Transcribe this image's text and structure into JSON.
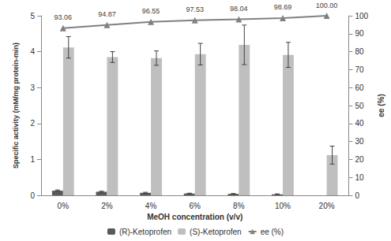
{
  "chart_data": {
    "type": "bar",
    "x_label": "MeOH concentration (v/v)",
    "y_label": "Specific activity (mM/mg protein-min)",
    "y2_label": "ee (%)",
    "categories": [
      "0%",
      "2%",
      "4%",
      "6%",
      "8%",
      "10%",
      "20%"
    ],
    "series": [
      {
        "name": "(R)-Ketoprofen",
        "type": "bar",
        "color": "#595959",
        "axis": "y",
        "values": [
          0.13,
          0.1,
          0.07,
          0.05,
          0.04,
          0.03,
          0
        ],
        "errors": [
          0.02,
          0.015,
          0.015,
          0.01,
          0.01,
          0.01,
          0
        ]
      },
      {
        "name": "(S)-Ketoprofen",
        "type": "bar",
        "color": "#bfbfbf",
        "axis": "y",
        "values": [
          4.12,
          3.85,
          3.82,
          3.93,
          4.19,
          3.91,
          1.12
        ],
        "errors": [
          0.3,
          0.15,
          0.2,
          0.3,
          0.55,
          0.35,
          0.25
        ]
      },
      {
        "name": "ee (%)",
        "type": "line",
        "color": "#808080",
        "axis": "y2",
        "marker": "triangle",
        "data_labels": true,
        "values": [
          93.06,
          94.87,
          96.55,
          97.53,
          98.04,
          98.69,
          100.0
        ],
        "value_labels": [
          "93.06",
          "94.87",
          "96.55",
          "97.53",
          "98.04",
          "98.69",
          "100.00"
        ]
      }
    ],
    "ylim": [
      0,
      5
    ],
    "yticks": [
      0,
      1,
      2,
      3,
      4,
      5
    ],
    "y2lim": [
      0,
      100
    ],
    "y2ticks": [
      0,
      10,
      20,
      30,
      40,
      50,
      60,
      70,
      80,
      90,
      100
    ],
    "legend": "bottom",
    "grid": false
  }
}
